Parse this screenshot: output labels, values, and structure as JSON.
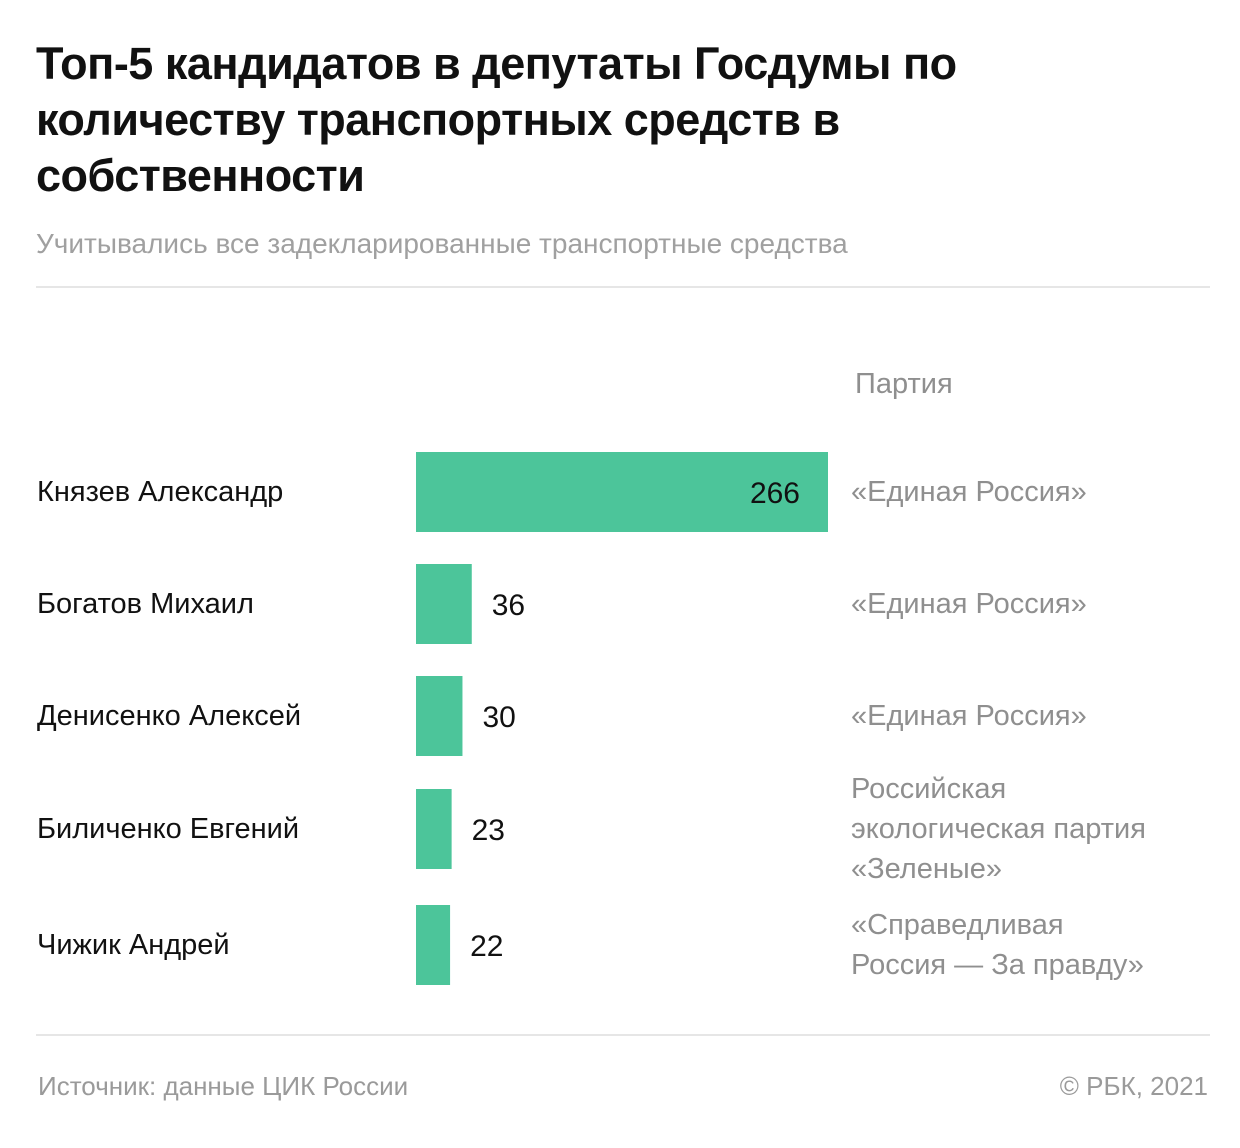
{
  "header": {
    "title": "Топ-5 кандидатов в депутаты Госдумы по количеству транспортных средств в собственности",
    "subtitle": "Учитывались все задекларированные транспортные средства"
  },
  "party_header": "Партия",
  "footer": {
    "source": "Источник:  данные ЦИК России",
    "copyright": "©  РБК, 2021"
  },
  "colors": {
    "bar": "#4cc59a",
    "text": "#111111",
    "muted": "#8f8f8f"
  },
  "chart_data": {
    "type": "bar",
    "orientation": "horizontal",
    "categories": [
      "Князев Александр",
      "Богатов Михаил",
      "Денисенко Алексей",
      "Биличенко Евгений",
      "Чижик Андрей"
    ],
    "values": [
      266,
      36,
      30,
      23,
      22
    ],
    "parties": [
      "«Единая Россия»",
      "«Единая Россия»",
      "«Единая Россия»",
      "Российская экологическая партия «Зеленые»",
      "«Справедливая Россия — За правду»"
    ],
    "xlim": [
      0,
      266
    ],
    "grid": false,
    "legend": false
  }
}
